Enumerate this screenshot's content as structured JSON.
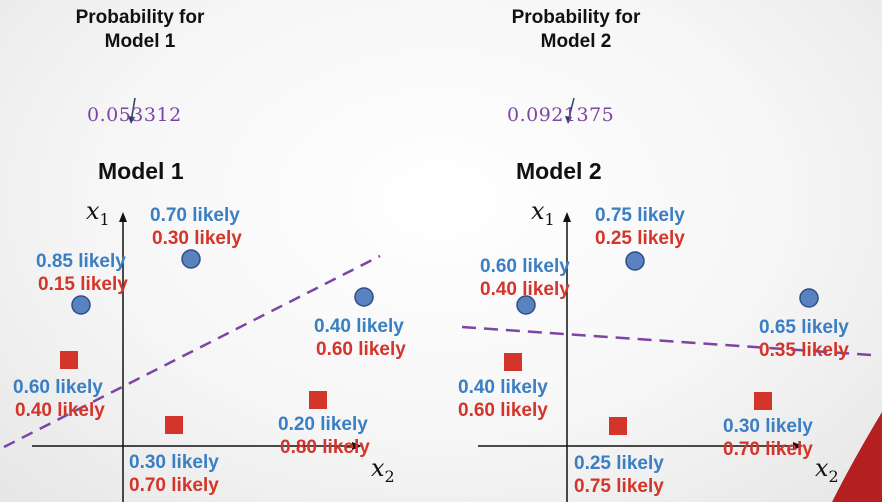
{
  "panels": [
    {
      "prob_header_line1": "Probability for",
      "prob_header_line2": "Model 1",
      "prob_value": "0.053312",
      "title": "Model 1",
      "axis_x1": "x",
      "axis_x1_sub": "1",
      "axis_x2": "x",
      "axis_x2_sub": "2",
      "points": [
        {
          "shape": "circle",
          "blue": "0.70 likely",
          "red": "0.30 likely"
        },
        {
          "shape": "circle",
          "blue": "0.85 likely",
          "red": "0.15 likely"
        },
        {
          "shape": "circle",
          "blue": "0.40 likely",
          "red": "0.60 likely"
        },
        {
          "shape": "square",
          "blue": "0.60 likely",
          "red": "0.40 likely"
        },
        {
          "shape": "square",
          "blue": "0.30 likely",
          "red": "0.70 likely"
        },
        {
          "shape": "square",
          "blue": "0.20 likely",
          "red": "0.80 likely"
        }
      ]
    },
    {
      "prob_header_line1": "Probability for",
      "prob_header_line2": "Model 2",
      "prob_value": "0.0921375",
      "title": "Model 2",
      "axis_x1": "x",
      "axis_x1_sub": "1",
      "axis_x2": "x",
      "axis_x2_sub": "2",
      "points": [
        {
          "shape": "circle",
          "blue": "0.75 likely",
          "red": "0.25 likely"
        },
        {
          "shape": "circle",
          "blue": "0.60 likely",
          "red": "0.40 likely"
        },
        {
          "shape": "circle",
          "blue": "0.65 likely",
          "red": "0.35 likely"
        },
        {
          "shape": "square",
          "blue": "0.40 likely",
          "red": "0.60 likely"
        },
        {
          "shape": "square",
          "blue": "0.25 likely",
          "red": "0.75 likely"
        },
        {
          "shape": "square",
          "blue": "0.30 likely",
          "red": "0.70 likely"
        }
      ]
    }
  ],
  "colors": {
    "blue_class": "#3a7ec3",
    "red_class": "#d3352a",
    "circle_fill": "#5a82c0",
    "square_fill": "#d3352a",
    "boundary": "#7d45a3",
    "value_text": "#7d45a3"
  }
}
